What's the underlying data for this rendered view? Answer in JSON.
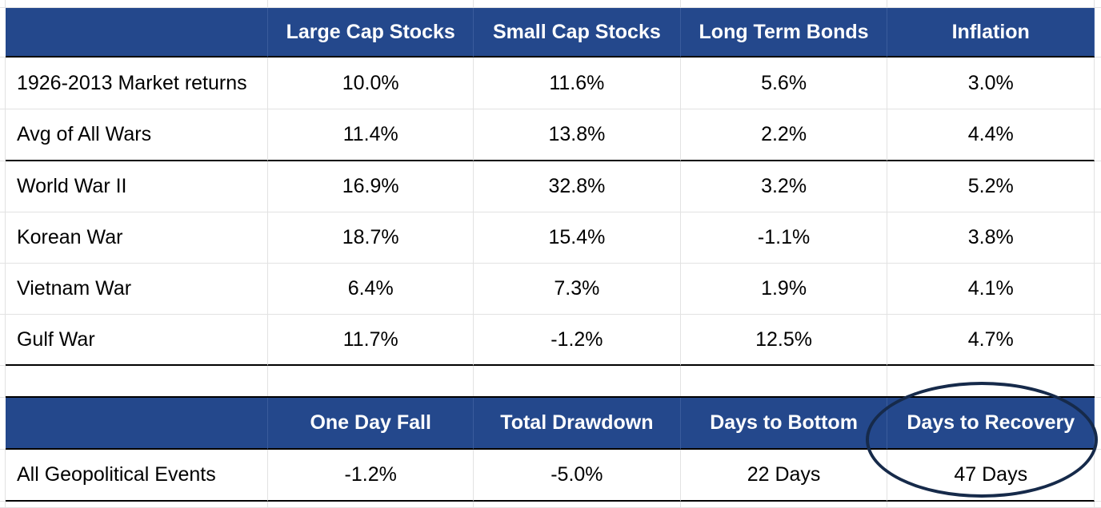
{
  "returns_table": {
    "headers": [
      "",
      "Large Cap Stocks",
      "Small Cap Stocks",
      "Long Term Bonds",
      "Inflation"
    ],
    "rows": [
      [
        "1926-2013 Market returns",
        "10.0%",
        "11.6%",
        "5.6%",
        "3.0%"
      ],
      [
        "Avg of All Wars",
        "11.4%",
        "13.8%",
        "2.2%",
        "4.4%"
      ],
      [
        "World War II",
        "16.9%",
        "32.8%",
        "3.2%",
        "5.2%"
      ],
      [
        "Korean War",
        "18.7%",
        "15.4%",
        "-1.1%",
        "3.8%"
      ],
      [
        "Vietnam War",
        "6.4%",
        "7.3%",
        "1.9%",
        "4.1%"
      ],
      [
        "Gulf War",
        "11.7%",
        "-1.2%",
        "12.5%",
        "4.7%"
      ]
    ]
  },
  "events_table": {
    "headers": [
      "",
      "One Day Fall",
      "Total Drawdown",
      "Days to Bottom",
      "Days to Recovery"
    ],
    "rows": [
      [
        "All Geopolitical Events",
        "-1.2%",
        "-5.0%",
        "22 Days",
        "47 Days"
      ]
    ]
  },
  "colors": {
    "header_bg": "#24488c",
    "header_text": "#ffffff",
    "highlight_circle": "#162a4a"
  }
}
